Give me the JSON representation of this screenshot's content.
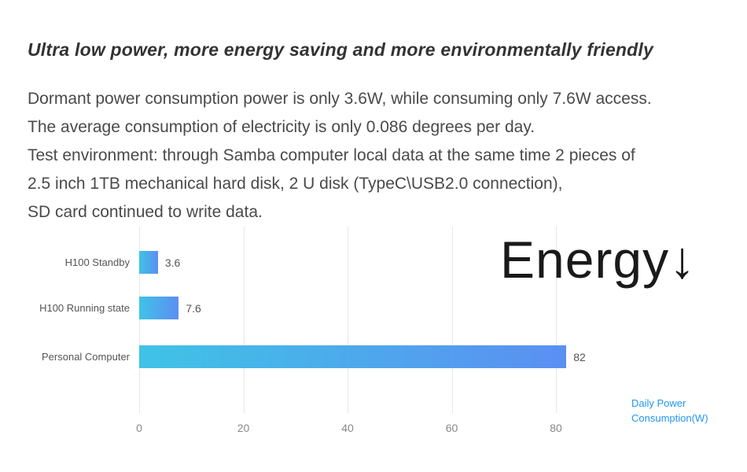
{
  "header": {
    "title": "Ultra low power, more energy saving and more environmentally friendly"
  },
  "body": {
    "lines": [
      "Dormant power consumption power is only 3.6W, while consuming only 7.6W access.",
      "The average consumption of electricity is only 0.086 degrees per day.",
      "Test environment: through Samba computer local data at the same time 2 pieces of",
      "2.5 inch 1TB mechanical hard disk, 2 U disk (TypeC\\USB2.0 connection),",
      "SD card continued to write data."
    ]
  },
  "chart_data": {
    "type": "bar",
    "orientation": "horizontal",
    "title": "",
    "categories": [
      "H100 Standby",
      "H100 Running state",
      "Personal Computer"
    ],
    "values": [
      3.6,
      7.6,
      82
    ],
    "value_labels": [
      "3.6",
      "7.6",
      "82"
    ],
    "x_ticks": [
      "0",
      "20",
      "40",
      "60",
      "80"
    ],
    "xlim": [
      0,
      80
    ],
    "grid": true,
    "legend": "none",
    "bar_color_start": "#3fc3e6",
    "bar_color_end": "#5b8ff2",
    "annotation": "Energy↓",
    "axis_caption_line1": "Daily Power",
    "axis_caption_line2": "Consumption(W)",
    "caption_color": "#2196f3"
  }
}
